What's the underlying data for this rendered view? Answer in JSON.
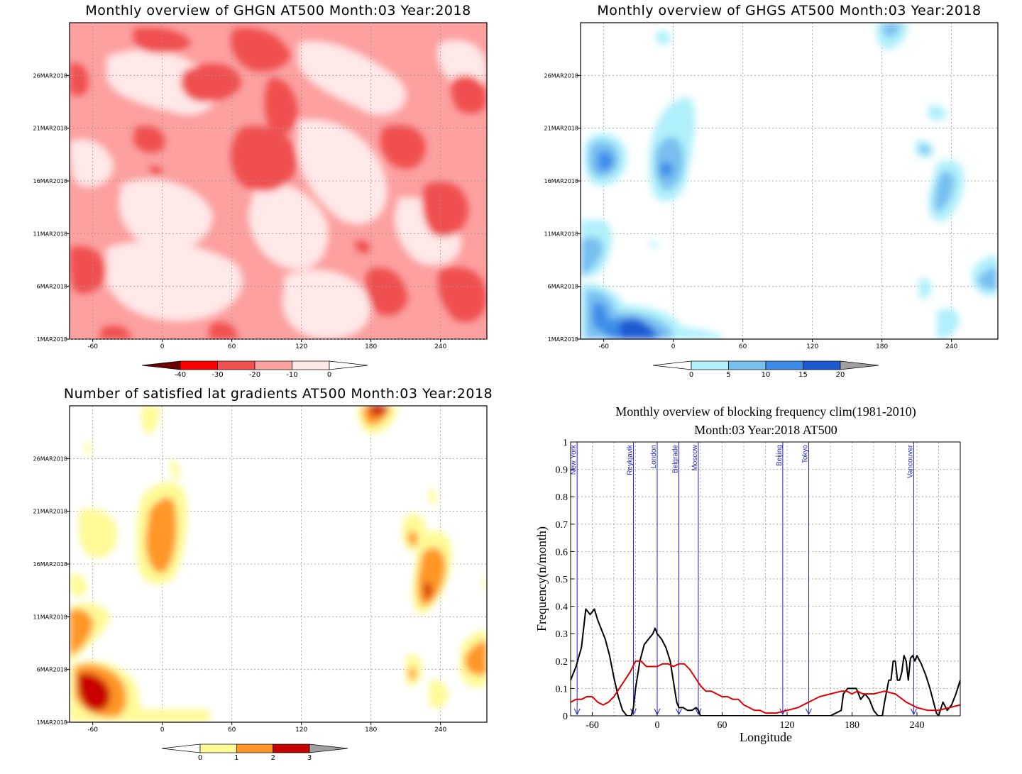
{
  "panels": [
    {
      "title": "Monthly overview of GHGN AT500 Month:03 Year:2018",
      "xticks": [
        "-60",
        "0",
        "60",
        "120",
        "180",
        "240"
      ],
      "yticks": [
        "1MAR2018",
        "6MAR2018",
        "11MAR2018",
        "16MAR2018",
        "21MAR2018",
        "26MAR2018"
      ],
      "colorbar": {
        "ticks": [
          "-40",
          "-30",
          "-20",
          "-10",
          "0"
        ],
        "colors": [
          "#6b0000",
          "#ff0000",
          "#f05050",
          "#fca0a0",
          "#ffe8e8",
          "#ffffff"
        ]
      }
    },
    {
      "title": "Monthly overview of GHGS AT500 Month:03 Year:2018",
      "xticks": [
        "-60",
        "0",
        "60",
        "120",
        "180",
        "240"
      ],
      "yticks": [
        "1MAR2018",
        "6MAR2018",
        "11MAR2018",
        "16MAR2018",
        "21MAR2018",
        "26MAR2018"
      ],
      "colorbar": {
        "ticks": [
          "0",
          "5",
          "10",
          "15",
          "20"
        ],
        "colors": [
          "#ffffff",
          "#b0f0fa",
          "#78c0f0",
          "#3c8ce8",
          "#1c5ad2",
          "#a0a0a0"
        ]
      }
    },
    {
      "title": "Number of satisfied lat gradients AT500 Month:03 Year:2018",
      "xticks": [
        "-60",
        "0",
        "60",
        "120",
        "180",
        "240"
      ],
      "yticks": [
        "1MAR2018",
        "6MAR2018",
        "11MAR2018",
        "16MAR2018",
        "21MAR2018",
        "26MAR2018"
      ],
      "colorbar": {
        "ticks": [
          "0",
          "1",
          "2",
          "3"
        ],
        "colors": [
          "#ffffff",
          "#fffa96",
          "#ff9628",
          "#c80000",
          "#a0a0a0"
        ]
      }
    }
  ],
  "chart_data": {
    "type": "line",
    "title": "Monthly overview of blocking frequency clim(1981-2010)",
    "subtitle": "Month:03 Year:2018  AT500",
    "xlabel": "Longitude",
    "ylabel": "Frequency(n/month)",
    "xlim": [
      -80,
      280
    ],
    "ylim": [
      0,
      1
    ],
    "xticks": [
      "-60",
      "0",
      "60",
      "120",
      "180",
      "240"
    ],
    "yticks": [
      "0",
      "0.1",
      "0.2",
      "0.3",
      "0.4",
      "0.5",
      "0.6",
      "0.7",
      "0.8",
      "0.9",
      "1"
    ],
    "grid": true,
    "cities": [
      {
        "name": "New York",
        "lon": -74
      },
      {
        "name": "Reykjavik",
        "lon": -22
      },
      {
        "name": "London",
        "lon": 0
      },
      {
        "name": "Belgrade",
        "lon": 20
      },
      {
        "name": "Moscow",
        "lon": 38
      },
      {
        "name": "Beijing",
        "lon": 116
      },
      {
        "name": "Tokyo",
        "lon": 140
      },
      {
        "name": "Vancouver",
        "lon": 237
      }
    ],
    "series": [
      {
        "color": "#000000",
        "x": [
          -80,
          -75,
          -70,
          -66,
          -62,
          -58,
          -55,
          -52,
          -48,
          -44,
          -40,
          -36,
          -32,
          -28,
          -24,
          -22,
          -20,
          -16,
          -12,
          -8,
          -4,
          -2,
          0,
          4,
          8,
          12,
          16,
          18,
          20,
          24,
          28,
          32,
          36,
          38,
          40,
          46,
          60,
          80,
          100,
          120,
          140,
          160,
          170,
          172,
          176,
          180,
          184,
          188,
          192,
          196,
          200,
          204,
          208,
          210,
          214,
          216,
          218,
          220,
          222,
          224,
          226,
          228,
          230,
          232,
          234,
          236,
          238,
          240,
          244,
          248,
          252,
          256,
          258,
          260,
          264,
          268,
          272,
          276,
          280
        ],
        "y": [
          0.13,
          0.18,
          0.25,
          0.39,
          0.37,
          0.39,
          0.35,
          0.32,
          0.28,
          0.22,
          0.14,
          0.07,
          0.02,
          0.0,
          0.0,
          0.03,
          0.1,
          0.2,
          0.26,
          0.28,
          0.3,
          0.32,
          0.3,
          0.28,
          0.25,
          0.2,
          0.1,
          0.05,
          0.03,
          0.03,
          0.02,
          0.02,
          0.03,
          0.02,
          0.0,
          0.0,
          0.0,
          0.0,
          0.0,
          0.0,
          0.0,
          0.0,
          0.02,
          0.08,
          0.1,
          0.1,
          0.1,
          0.06,
          0.08,
          0.06,
          0.02,
          0.0,
          0.0,
          0.05,
          0.13,
          0.13,
          0.2,
          0.2,
          0.13,
          0.13,
          0.16,
          0.22,
          0.2,
          0.13,
          0.21,
          0.22,
          0.2,
          0.22,
          0.19,
          0.15,
          0.1,
          0.04,
          0.01,
          0.0,
          0.05,
          0.02,
          0.04,
          0.08,
          0.13
        ]
      },
      {
        "color": "#e00000",
        "x": [
          -80,
          -75,
          -70,
          -65,
          -60,
          -55,
          -50,
          -45,
          -40,
          -35,
          -30,
          -25,
          -20,
          -15,
          -10,
          -5,
          0,
          5,
          10,
          15,
          20,
          25,
          30,
          35,
          40,
          45,
          50,
          55,
          60,
          65,
          70,
          75,
          80,
          85,
          90,
          95,
          100,
          110,
          120,
          130,
          140,
          150,
          160,
          170,
          175,
          180,
          185,
          190,
          195,
          200,
          210,
          220,
          230,
          240,
          250,
          260,
          270,
          280
        ],
        "y": [
          0.05,
          0.06,
          0.06,
          0.07,
          0.07,
          0.05,
          0.04,
          0.05,
          0.07,
          0.1,
          0.13,
          0.16,
          0.2,
          0.2,
          0.18,
          0.18,
          0.18,
          0.19,
          0.19,
          0.18,
          0.19,
          0.19,
          0.17,
          0.14,
          0.11,
          0.09,
          0.09,
          0.08,
          0.07,
          0.07,
          0.06,
          0.06,
          0.04,
          0.03,
          0.02,
          0.02,
          0.01,
          0.01,
          0.02,
          0.03,
          0.05,
          0.07,
          0.08,
          0.09,
          0.09,
          0.08,
          0.09,
          0.08,
          0.08,
          0.08,
          0.09,
          0.08,
          0.05,
          0.03,
          0.02,
          0.02,
          0.03,
          0.04
        ]
      }
    ]
  }
}
